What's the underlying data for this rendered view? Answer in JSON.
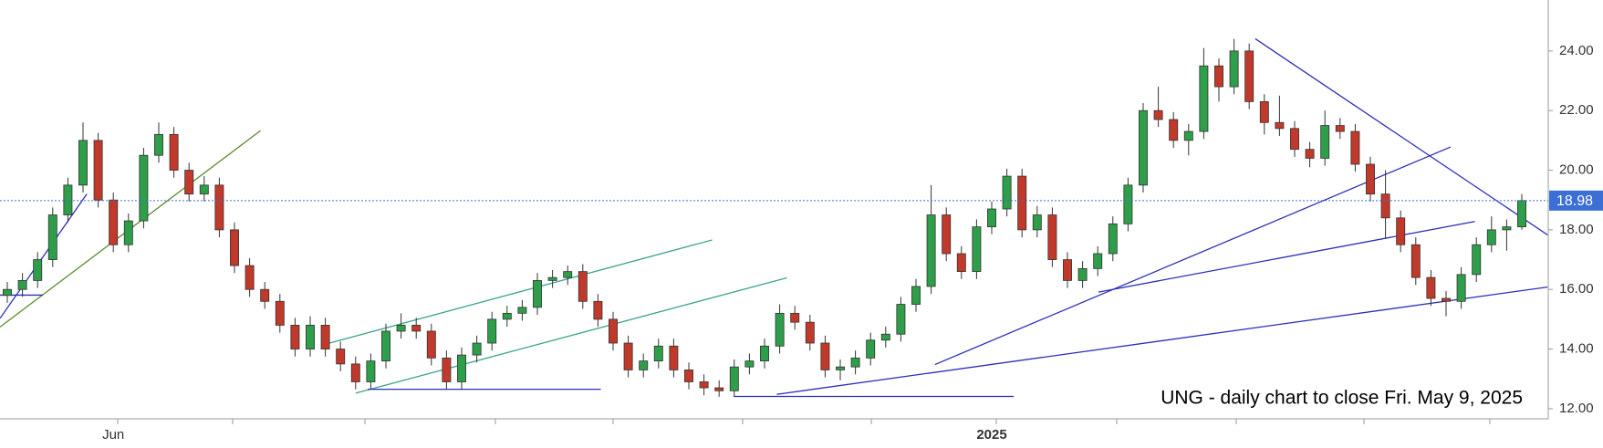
{
  "chart_data": {
    "type": "candlestick",
    "annotation": "UNG - daily chart to close Fri. May 9, 2025",
    "categories": [
      null,
      null,
      null,
      null,
      null,
      null,
      null,
      "Jun",
      null,
      null,
      null,
      null,
      null,
      null,
      null,
      null,
      null,
      null,
      null,
      null,
      null,
      null,
      null,
      null,
      null,
      null,
      null,
      null,
      null,
      null,
      null,
      null,
      null,
      null,
      null,
      null,
      null,
      null,
      null,
      null,
      null,
      null,
      null,
      null,
      null,
      null,
      null,
      null,
      null,
      null,
      null,
      null,
      null,
      null,
      null,
      null,
      null,
      null,
      null,
      null,
      null,
      null,
      null,
      null,
      null,
      "2025",
      null,
      null,
      null,
      null,
      null,
      null,
      null,
      null,
      null,
      null,
      null,
      null,
      null,
      null,
      null,
      null,
      null,
      null,
      null,
      null,
      null,
      null,
      null,
      null,
      null,
      null,
      null,
      null,
      null,
      null,
      null,
      null,
      null,
      null,
      null
    ],
    "open": [
      15.8,
      16.0,
      16.3,
      17.0,
      18.5,
      19.5,
      21.0,
      19.0,
      17.5,
      18.3,
      20.5,
      21.2,
      20.0,
      19.2,
      19.5,
      18.0,
      16.8,
      16.0,
      15.6,
      14.8,
      14.0,
      14.8,
      14.0,
      13.5,
      12.9,
      13.6,
      14.6,
      14.8,
      14.6,
      13.7,
      12.9,
      13.8,
      14.2,
      15.0,
      15.2,
      15.4,
      16.3,
      16.4,
      16.6,
      15.6,
      15.0,
      14.2,
      13.3,
      13.6,
      14.1,
      13.3,
      12.9,
      12.7,
      12.6,
      13.4,
      13.6,
      14.1,
      15.2,
      14.9,
      14.2,
      13.3,
      13.4,
      13.7,
      14.3,
      14.5,
      15.5,
      16.1,
      18.5,
      17.2,
      16.6,
      18.1,
      18.7,
      19.8,
      18.0,
      18.5,
      17.0,
      16.3,
      16.7,
      17.2,
      18.2,
      19.5,
      22.0,
      21.7,
      21.0,
      21.3,
      23.5,
      22.8,
      24.0,
      22.3,
      21.6,
      21.4,
      20.7,
      20.4,
      21.5,
      21.3,
      20.2,
      19.2,
      18.4,
      17.5,
      16.4,
      15.7,
      15.6,
      16.5,
      17.5,
      18.0,
      18.1
    ],
    "high": [
      16.25,
      16.55,
      17.25,
      18.75,
      19.75,
      21.6,
      21.25,
      19.25,
      18.55,
      20.75,
      21.6,
      21.45,
      20.25,
      19.8,
      19.75,
      18.25,
      17.05,
      16.25,
      15.85,
      15.05,
      15.1,
      15.05,
      14.25,
      13.75,
      13.85,
      14.85,
      15.2,
      15.05,
      14.85,
      13.95,
      14.05,
      14.45,
      15.25,
      15.45,
      15.65,
      16.55,
      16.65,
      16.8,
      16.85,
      15.85,
      15.25,
      14.45,
      13.85,
      14.35,
      14.35,
      13.55,
      13.15,
      12.95,
      13.65,
      13.85,
      14.35,
      15.5,
      15.45,
      15.15,
      14.45,
      13.65,
      13.95,
      14.55,
      14.75,
      15.75,
      16.35,
      19.5,
      18.75,
      17.45,
      18.35,
      18.95,
      20.05,
      20.05,
      18.8,
      18.75,
      17.25,
      16.95,
      17.45,
      18.45,
      19.75,
      22.25,
      22.8,
      21.95,
      21.55,
      24.1,
      23.75,
      24.4,
      24.25,
      22.55,
      22.5,
      21.65,
      20.95,
      22.0,
      21.75,
      21.55,
      20.45,
      20.0,
      18.65,
      17.75,
      16.65,
      15.95,
      16.75,
      17.75,
      18.45,
      18.35,
      19.2
    ],
    "low": [
      15.55,
      15.75,
      16.05,
      16.75,
      18.25,
      19.25,
      18.75,
      17.25,
      17.25,
      18.05,
      20.25,
      19.75,
      18.95,
      18.95,
      17.75,
      16.55,
      15.75,
      15.35,
      14.55,
      13.75,
      13.75,
      13.75,
      13.25,
      12.65,
      12.65,
      13.35,
      14.35,
      14.35,
      13.45,
      12.65,
      12.65,
      13.55,
      13.95,
      14.75,
      14.95,
      15.15,
      16.05,
      16.15,
      15.35,
      14.75,
      13.95,
      13.05,
      13.05,
      13.35,
      13.05,
      12.65,
      12.45,
      12.4,
      12.4,
      13.15,
      13.35,
      13.85,
      14.65,
      13.95,
      13.05,
      12.95,
      13.15,
      13.45,
      14.05,
      14.25,
      15.25,
      15.85,
      16.95,
      16.35,
      16.35,
      17.85,
      18.45,
      17.75,
      17.75,
      16.75,
      16.05,
      16.05,
      16.45,
      16.95,
      17.95,
      19.25,
      21.45,
      20.75,
      20.5,
      21.05,
      22.3,
      22.55,
      22.05,
      21.2,
      21.15,
      20.45,
      20.1,
      20.15,
      21.05,
      19.95,
      18.95,
      17.7,
      17.25,
      16.15,
      15.45,
      15.1,
      15.35,
      16.25,
      17.25,
      17.3,
      18.0
    ],
    "close": [
      16.0,
      16.3,
      17.0,
      18.5,
      19.5,
      21.0,
      19.0,
      17.5,
      18.3,
      20.5,
      21.2,
      20.0,
      19.2,
      19.5,
      18.0,
      16.8,
      16.0,
      15.6,
      14.8,
      14.0,
      14.8,
      14.0,
      13.5,
      12.9,
      13.6,
      14.6,
      14.8,
      14.6,
      13.7,
      12.9,
      13.8,
      14.2,
      15.0,
      15.2,
      15.4,
      16.3,
      16.4,
      16.6,
      15.6,
      15.0,
      14.2,
      13.3,
      13.6,
      14.1,
      13.3,
      12.9,
      12.7,
      12.6,
      13.4,
      13.6,
      14.1,
      15.2,
      14.9,
      14.2,
      13.3,
      13.4,
      13.7,
      14.3,
      14.5,
      15.5,
      16.1,
      18.5,
      17.2,
      16.6,
      18.1,
      18.7,
      19.8,
      18.0,
      18.5,
      17.0,
      16.3,
      16.7,
      17.2,
      18.2,
      19.5,
      22.0,
      21.7,
      21.0,
      21.3,
      23.5,
      22.8,
      24.0,
      22.3,
      21.6,
      21.4,
      20.7,
      20.4,
      21.5,
      21.3,
      20.2,
      19.2,
      18.4,
      17.5,
      16.4,
      15.7,
      15.6,
      16.5,
      17.5,
      18.0,
      18.1,
      18.98
    ],
    "up_color": "#2e9e4a",
    "down_color": "#c0392b",
    "last_price": 18.98,
    "last_price_color": "#3b6fd4",
    "ylim": [
      11.66,
      25.71
    ],
    "yticks": [
      {
        "value": 12,
        "label": "12.00"
      },
      {
        "value": 14,
        "label": "14.00"
      },
      {
        "value": 16,
        "label": "16.00"
      },
      {
        "value": 18,
        "label": "18.00"
      },
      {
        "value": 20,
        "label": "20.00"
      },
      {
        "value": 22,
        "label": "22.00"
      },
      {
        "value": 24,
        "label": "24.00"
      }
    ],
    "trend_lines": [
      {
        "color": "#2b2fb8",
        "x": [
          -0.48,
          5.25
        ],
        "y": [
          15.03,
          19.2
        ]
      },
      {
        "color": "#5a8a2a",
        "x": [
          -0.48,
          16.72
        ],
        "y": [
          14.74,
          21.33
        ]
      },
      {
        "color": "#2b2fb8",
        "x": [
          -0.48,
          2.35
        ],
        "y": [
          15.81,
          15.81
        ]
      },
      {
        "color": "#3aa58c",
        "x": [
          20.77,
          46.54
        ],
        "y": [
          14.13,
          17.66
        ]
      },
      {
        "color": "#3aa58c",
        "x": [
          23.0,
          51.47
        ],
        "y": [
          12.52,
          16.39
        ]
      },
      {
        "color": "#2b2fb8",
        "x": [
          23.8,
          39.19
        ],
        "y": [
          12.65,
          12.65
        ]
      },
      {
        "color": "#2b2fb8",
        "x": [
          47.96,
          66.45
        ],
        "y": [
          12.41,
          12.41
        ]
      },
      {
        "color": "#2b2fb8",
        "x": [
          50.8,
          101.7
        ],
        "y": [
          12.48,
          16.08
        ]
      },
      {
        "color": "#2b2fb8",
        "x": [
          61.25,
          95.3
        ],
        "y": [
          13.48,
          20.78
        ]
      },
      {
        "color": "#2b2fb8",
        "x": [
          72.05,
          96.9
        ],
        "y": [
          15.91,
          18.28
        ]
      },
      {
        "color": "#2b2fb8",
        "x": [
          82.4,
          101.7
        ],
        "y": [
          24.41,
          17.83
        ]
      }
    ]
  }
}
